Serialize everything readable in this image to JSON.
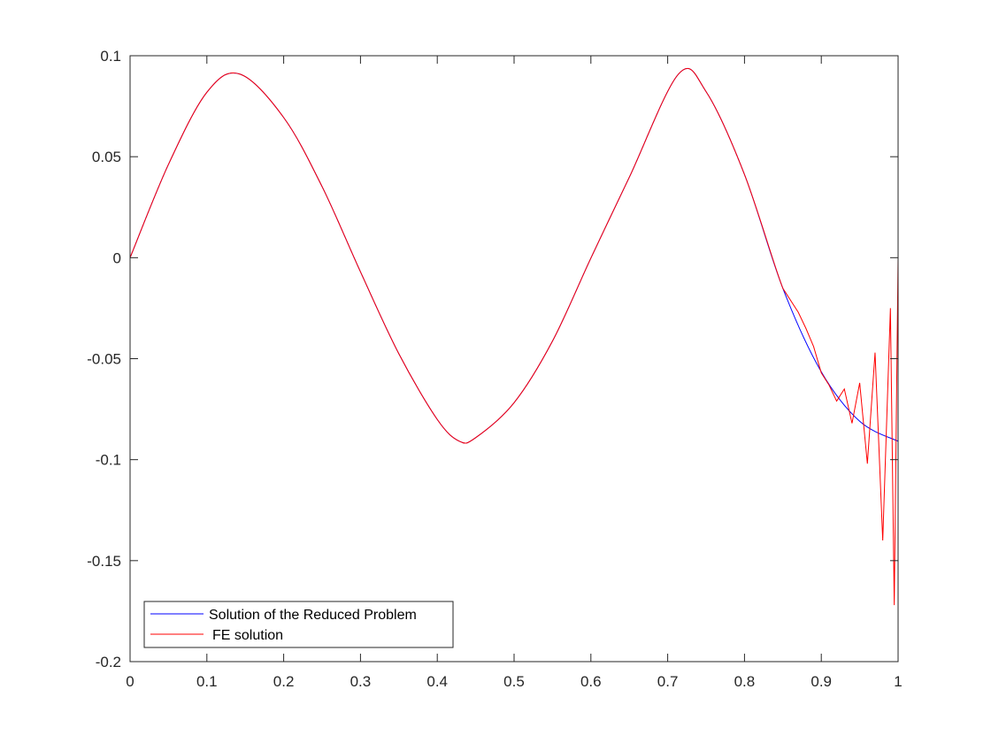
{
  "chart_data": {
    "type": "line",
    "title": "",
    "xlabel": "",
    "ylabel": "",
    "xlim": [
      0,
      1
    ],
    "ylim": [
      -0.2,
      0.1
    ],
    "x_ticks": [
      0,
      0.1,
      0.2,
      0.3,
      0.4,
      0.5,
      0.6,
      0.7,
      0.8,
      0.9,
      1
    ],
    "x_tick_labels": [
      "0",
      "0.1",
      "0.2",
      "0.3",
      "0.4",
      "0.5",
      "0.6",
      "0.7",
      "0.8",
      "0.9",
      "1"
    ],
    "y_ticks": [
      -0.2,
      -0.15,
      -0.1,
      -0.05,
      0,
      0.05,
      0.1
    ],
    "y_tick_labels": [
      "-0.2",
      "-0.15",
      "-0.1",
      "-0.05",
      "0",
      "0.05",
      "0.1"
    ],
    "grid": false,
    "legend_position": "bottom-left",
    "series": [
      {
        "name": "Solution of the Reduced Problem",
        "color": "#0000ff",
        "x": [
          0,
          0.05,
          0.1,
          0.143,
          0.2,
          0.25,
          0.3,
          0.35,
          0.4,
          0.429,
          0.45,
          0.5,
          0.55,
          0.6,
          0.65,
          0.714,
          0.75,
          0.8,
          0.85,
          0.9,
          0.95,
          1
        ],
        "y": [
          0,
          0.0462,
          0.0819,
          0.0909,
          0.0694,
          0.0352,
          -0.007,
          -0.0476,
          -0.0801,
          -0.0909,
          -0.0891,
          -0.0718,
          -0.0413,
          -0.0002,
          0.0398,
          0.0909,
          0.0822,
          0.0412,
          -0.0152,
          -0.0565,
          -0.081,
          -0.0909
        ]
      },
      {
        "name": "FE solution",
        "color": "#ff0000",
        "x": [
          0,
          0.05,
          0.1,
          0.143,
          0.2,
          0.25,
          0.3,
          0.35,
          0.4,
          0.429,
          0.45,
          0.5,
          0.55,
          0.6,
          0.65,
          0.714,
          0.75,
          0.8,
          0.85,
          0.87,
          0.88,
          0.89,
          0.9,
          0.91,
          0.92,
          0.93,
          0.94,
          0.95,
          0.96,
          0.97,
          0.98,
          0.99,
          0.995,
          1
        ],
        "y": [
          0,
          0.0462,
          0.0819,
          0.0909,
          0.0694,
          0.0352,
          -0.007,
          -0.0476,
          -0.0801,
          -0.0909,
          -0.0891,
          -0.0718,
          -0.0413,
          -0.0002,
          0.0398,
          0.0909,
          0.0822,
          0.0412,
          -0.0152,
          -0.027,
          -0.035,
          -0.044,
          -0.057,
          -0.063,
          -0.071,
          -0.065,
          -0.082,
          -0.062,
          -0.102,
          -0.047,
          -0.14,
          -0.025,
          -0.172,
          0
        ]
      }
    ]
  }
}
